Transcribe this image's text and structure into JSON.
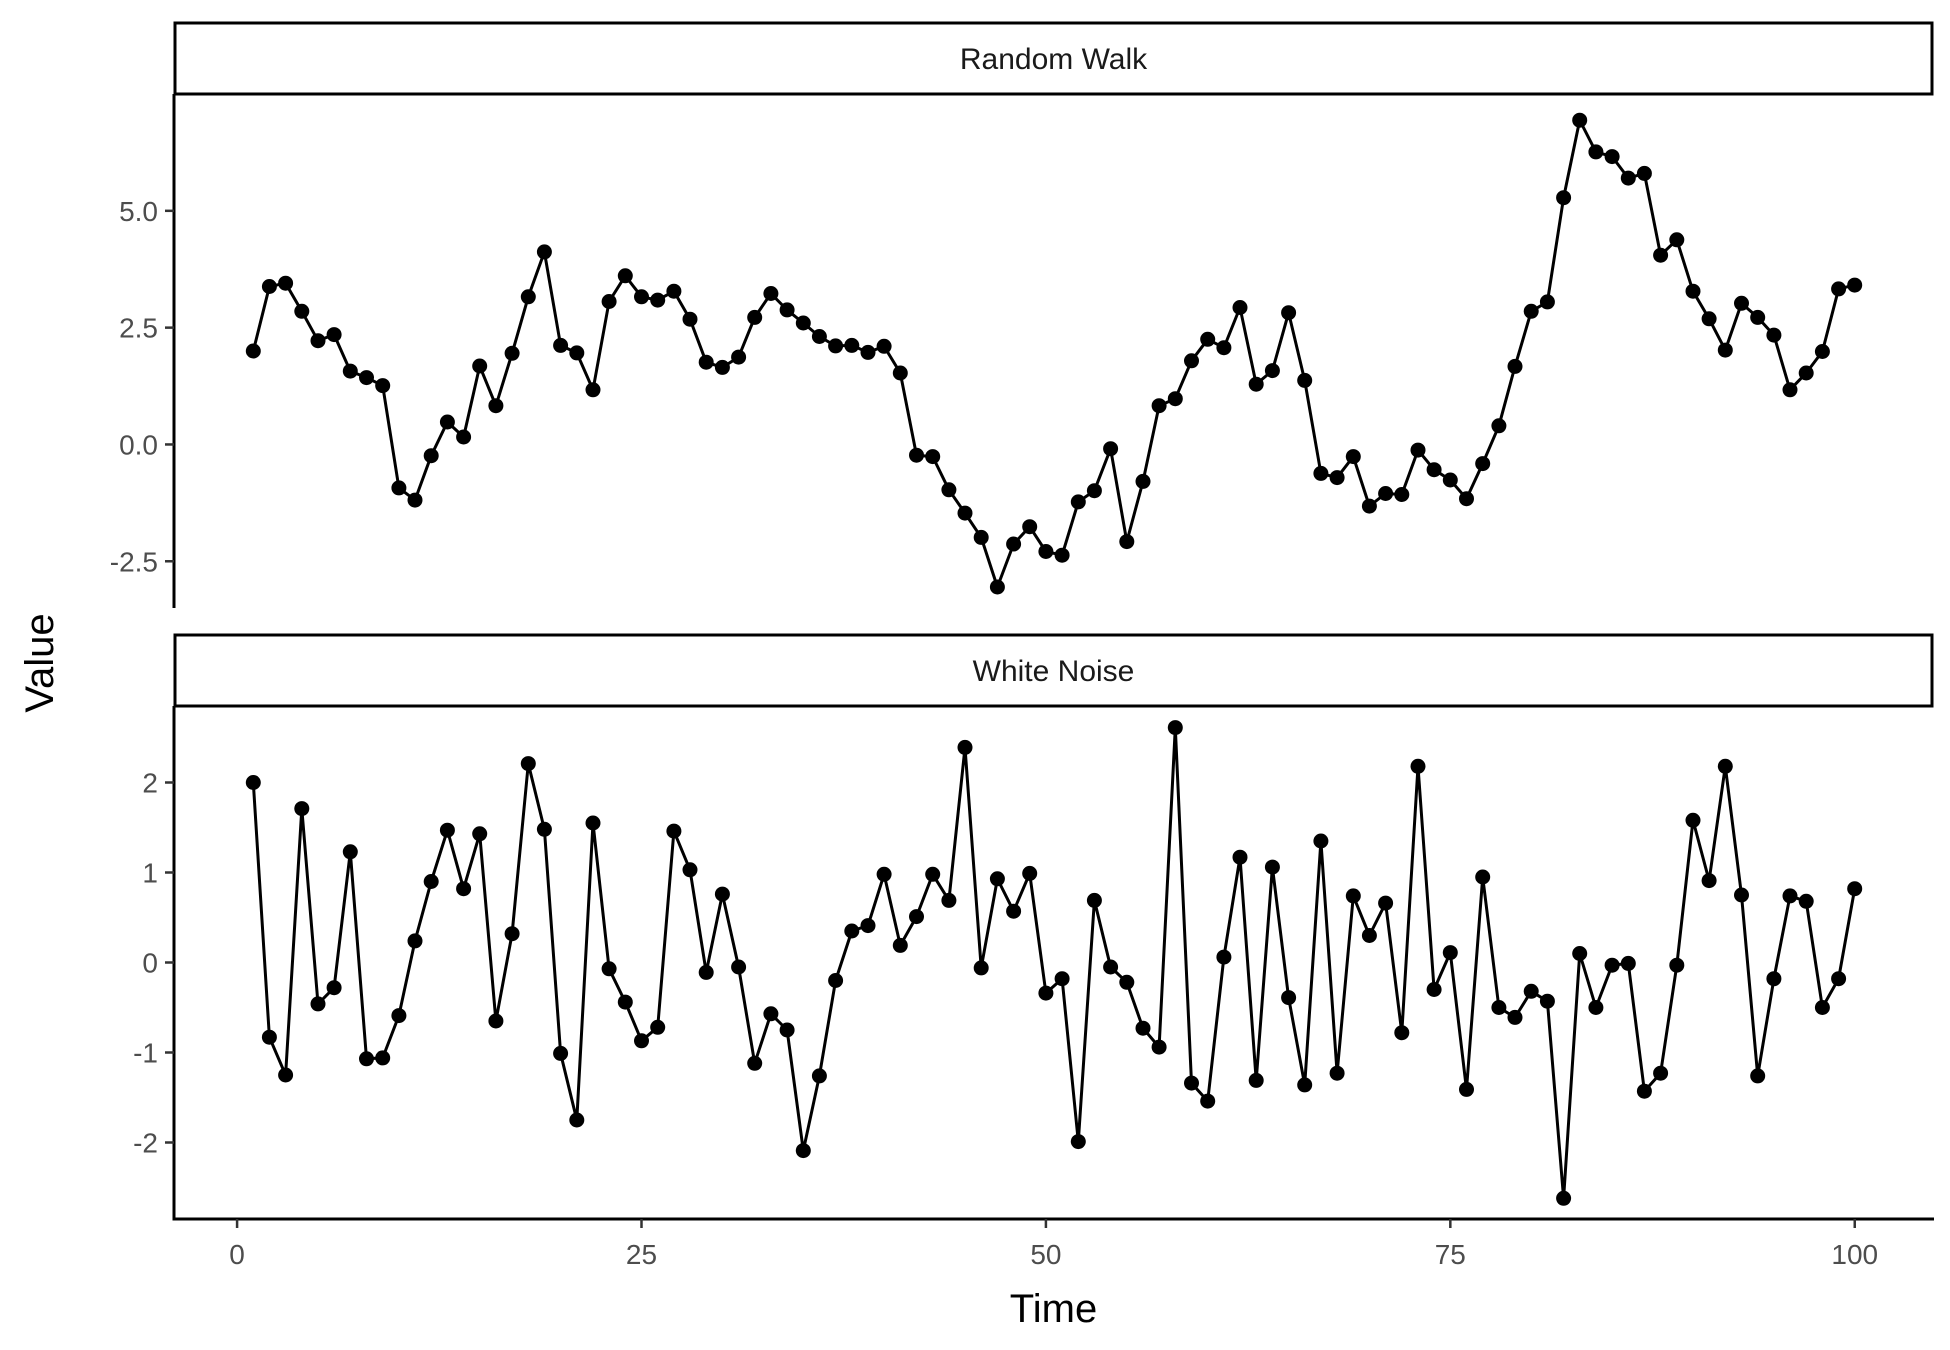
{
  "chart_data": {
    "type": "line",
    "xlabel": "Time",
    "ylabel": "Value",
    "x_ticks": [
      0,
      25,
      50,
      75,
      100
    ],
    "xlim": [
      -3.9,
      104.9
    ],
    "line_color": "#000000",
    "point_color": "#000000",
    "grid": false,
    "panels": [
      {
        "name": "Random Walk",
        "ylim": [
          -3.5,
          7.5
        ],
        "y_ticks": [
          -2.5,
          0.0,
          2.5,
          5.0
        ],
        "y_tick_labels": [
          "-2.5",
          "0.0",
          "2.5",
          "5.0"
        ],
        "x": [
          1,
          2,
          3,
          4,
          5,
          6,
          7,
          8,
          9,
          10,
          11,
          12,
          13,
          14,
          15,
          16,
          17,
          18,
          19,
          20,
          21,
          22,
          23,
          24,
          25,
          26,
          27,
          28,
          29,
          30,
          31,
          32,
          33,
          34,
          35,
          36,
          37,
          38,
          39,
          40,
          41,
          42,
          43,
          44,
          45,
          46,
          47,
          48,
          49,
          50,
          51,
          52,
          53,
          54,
          55,
          56,
          57,
          58,
          59,
          60,
          61,
          62,
          63,
          64,
          65,
          66,
          67,
          68,
          69,
          70,
          71,
          72,
          73,
          74,
          75,
          76,
          77,
          78,
          79,
          80,
          81,
          82,
          83,
          84,
          85,
          86,
          87,
          88,
          89,
          90,
          91,
          92,
          93,
          94,
          95,
          96,
          97,
          98,
          99,
          100
        ],
        "values": [
          2.0,
          3.38,
          3.45,
          2.85,
          2.22,
          2.35,
          1.57,
          1.43,
          1.26,
          -0.93,
          -1.19,
          -0.24,
          0.48,
          0.16,
          1.68,
          0.83,
          1.95,
          3.16,
          4.12,
          2.12,
          1.96,
          1.17,
          3.06,
          3.61,
          3.16,
          3.09,
          3.28,
          2.68,
          1.76,
          1.65,
          1.87,
          2.72,
          3.23,
          2.88,
          2.6,
          2.31,
          2.11,
          2.12,
          1.97,
          2.1,
          1.53,
          -0.23,
          -0.26,
          -0.97,
          -1.47,
          -1.99,
          -3.05,
          -2.13,
          -1.76,
          -2.29,
          -2.37,
          -1.23,
          -0.99,
          -0.09,
          -2.08,
          -0.79,
          0.83,
          0.98,
          1.79,
          2.25,
          2.07,
          2.93,
          1.29,
          1.58,
          2.82,
          1.37,
          -0.62,
          -0.71,
          -0.26,
          -1.32,
          -1.05,
          -1.07,
          -0.12,
          -0.54,
          -0.76,
          -1.16,
          -0.41,
          0.4,
          1.67,
          2.85,
          3.05,
          5.28,
          6.94,
          6.26,
          6.16,
          5.7,
          5.8,
          4.05,
          4.38,
          3.28,
          2.69,
          2.02,
          3.02,
          2.72,
          2.34,
          1.17,
          1.53,
          1.99,
          3.33,
          3.41
        ]
      },
      {
        "name": "White Noise",
        "ylim": [
          -2.85,
          2.85
        ],
        "y_ticks": [
          -2,
          -1,
          0,
          1,
          2
        ],
        "y_tick_labels": [
          "-2",
          "-1",
          "0",
          "1",
          "2"
        ],
        "x": [
          1,
          2,
          3,
          4,
          5,
          6,
          7,
          8,
          9,
          10,
          11,
          12,
          13,
          14,
          15,
          16,
          17,
          18,
          19,
          20,
          21,
          22,
          23,
          24,
          25,
          26,
          27,
          28,
          29,
          30,
          31,
          32,
          33,
          34,
          35,
          36,
          37,
          38,
          39,
          40,
          41,
          42,
          43,
          44,
          45,
          46,
          47,
          48,
          49,
          50,
          51,
          52,
          53,
          54,
          55,
          56,
          57,
          58,
          59,
          60,
          61,
          62,
          63,
          64,
          65,
          66,
          67,
          68,
          69,
          70,
          71,
          72,
          73,
          74,
          75,
          76,
          77,
          78,
          79,
          80,
          81,
          82,
          83,
          84,
          85,
          86,
          87,
          88,
          89,
          90,
          91,
          92,
          93,
          94,
          95,
          96,
          97,
          98,
          99,
          100
        ],
        "values": [
          2.0,
          -0.83,
          -1.25,
          1.71,
          -0.46,
          -0.28,
          1.23,
          -1.07,
          -1.06,
          -0.59,
          0.24,
          0.9,
          1.47,
          0.82,
          1.43,
          -0.65,
          0.32,
          2.21,
          1.48,
          -1.01,
          -1.75,
          1.55,
          -0.07,
          -0.44,
          -0.87,
          -0.72,
          1.46,
          1.03,
          -0.11,
          0.76,
          -0.05,
          -1.12,
          -0.57,
          -0.75,
          -2.09,
          -1.26,
          -0.2,
          0.35,
          0.41,
          0.98,
          0.19,
          0.51,
          0.98,
          0.69,
          2.39,
          -0.06,
          0.93,
          0.57,
          0.99,
          -0.34,
          -0.18,
          -1.99,
          0.69,
          -0.05,
          -0.22,
          -0.73,
          -0.94,
          2.61,
          -1.34,
          -1.54,
          0.06,
          1.17,
          -1.31,
          1.06,
          -0.39,
          -1.36,
          1.35,
          -1.23,
          0.74,
          0.3,
          0.66,
          -0.78,
          2.18,
          -0.3,
          0.11,
          -1.41,
          0.95,
          -0.5,
          -0.61,
          -0.32,
          -0.43,
          -2.62,
          0.1,
          -0.5,
          -0.03,
          -0.01,
          -1.43,
          -1.23,
          -0.03,
          1.58,
          0.91,
          2.18,
          0.75,
          -1.26,
          -0.18,
          0.74,
          0.68,
          -0.5,
          -0.18,
          0.82
        ]
      }
    ]
  }
}
